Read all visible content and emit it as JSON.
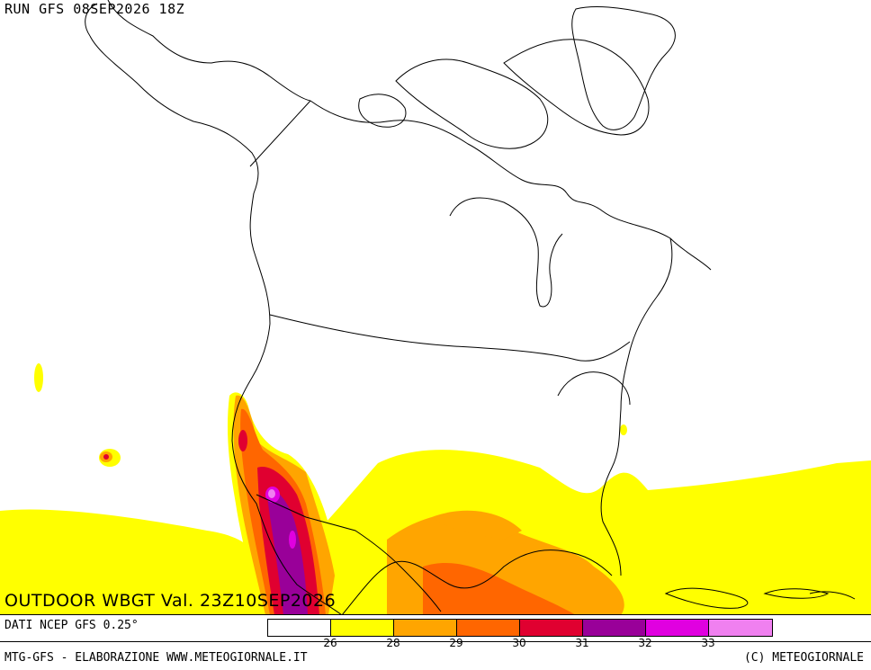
{
  "header": {
    "run_label": "RUN GFS 08SEP2026 18Z"
  },
  "map_title": "OUTDOOR WBGT Val. 23Z10SEP2026",
  "source_note": "DATI NCEP GFS 0.25°",
  "legend": {
    "colors": [
      "#ffffff",
      "#ffff00",
      "#ffa500",
      "#ff6600",
      "#e00030",
      "#990099",
      "#e000e0",
      "#f080f0"
    ],
    "ticks": [
      "26",
      "28",
      "29",
      "30",
      "31",
      "32",
      "33"
    ]
  },
  "footer": {
    "left": "MTG-GFS - ELABORAZIONE WWW.METEOGIORNALE.IT",
    "right": "(C) METEOGIORNALE"
  }
}
